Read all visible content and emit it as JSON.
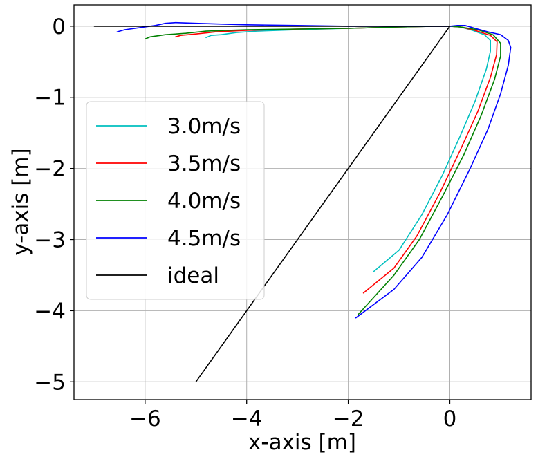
{
  "chart_data": {
    "type": "line",
    "title": "",
    "xlabel": "x-axis [m]",
    "ylabel": "y-axis [m]",
    "xlim": [
      -7.4,
      1.6
    ],
    "ylim": [
      -5.25,
      0.3
    ],
    "xticks": [
      -6,
      -4,
      -2,
      0
    ],
    "xtick_labels": [
      "−6",
      "−4",
      "−2",
      "0"
    ],
    "yticks": [
      0,
      -1,
      -2,
      -3,
      -4,
      -5
    ],
    "ytick_labels": [
      "0",
      "−1",
      "−2",
      "−3",
      "−4",
      "−5"
    ],
    "grid": true,
    "legend": {
      "position": "center-left"
    },
    "series": [
      {
        "name": "3.0m/s",
        "color": "#00bfbf",
        "points": [
          [
            -4.8,
            -0.16
          ],
          [
            -4.7,
            -0.13
          ],
          [
            -4.5,
            -0.12
          ],
          [
            -4.2,
            -0.09
          ],
          [
            -3.8,
            -0.07
          ],
          [
            -3.0,
            -0.05
          ],
          [
            -2.0,
            -0.03
          ],
          [
            -1.0,
            -0.01
          ],
          [
            -0.3,
            0.0
          ],
          [
            0.0,
            0.0
          ],
          [
            0.2,
            -0.01
          ],
          [
            0.45,
            -0.06
          ],
          [
            0.68,
            -0.12
          ],
          [
            0.8,
            -0.2
          ],
          [
            0.8,
            -0.35
          ],
          [
            0.72,
            -0.6
          ],
          [
            0.5,
            -1.05
          ],
          [
            0.2,
            -1.55
          ],
          [
            -0.15,
            -2.1
          ],
          [
            -0.55,
            -2.65
          ],
          [
            -1.0,
            -3.15
          ],
          [
            -1.5,
            -3.45
          ]
        ]
      },
      {
        "name": "3.5m/s",
        "color": "#ff0000",
        "points": [
          [
            -5.4,
            -0.15
          ],
          [
            -5.3,
            -0.13
          ],
          [
            -5.0,
            -0.11
          ],
          [
            -4.6,
            -0.08
          ],
          [
            -4.0,
            -0.06
          ],
          [
            -3.0,
            -0.04
          ],
          [
            -2.0,
            -0.03
          ],
          [
            -1.0,
            -0.01
          ],
          [
            -0.3,
            0.0
          ],
          [
            0.0,
            0.0
          ],
          [
            0.2,
            -0.01
          ],
          [
            0.5,
            -0.06
          ],
          [
            0.8,
            -0.13
          ],
          [
            0.93,
            -0.22
          ],
          [
            0.92,
            -0.4
          ],
          [
            0.8,
            -0.72
          ],
          [
            0.55,
            -1.2
          ],
          [
            0.2,
            -1.75
          ],
          [
            -0.2,
            -2.35
          ],
          [
            -0.65,
            -2.95
          ],
          [
            -1.1,
            -3.4
          ],
          [
            -1.7,
            -3.75
          ]
        ]
      },
      {
        "name": "4.0m/s",
        "color": "#008000",
        "points": [
          [
            -6.0,
            -0.18
          ],
          [
            -5.9,
            -0.15
          ],
          [
            -5.6,
            -0.12
          ],
          [
            -5.2,
            -0.1
          ],
          [
            -4.8,
            -0.07
          ],
          [
            -4.0,
            -0.05
          ],
          [
            -3.0,
            -0.04
          ],
          [
            -2.0,
            -0.03
          ],
          [
            -1.0,
            -0.01
          ],
          [
            -0.3,
            0.0
          ],
          [
            0.0,
            0.0
          ],
          [
            0.2,
            -0.01
          ],
          [
            0.55,
            -0.05
          ],
          [
            0.85,
            -0.12
          ],
          [
            1.0,
            -0.24
          ],
          [
            1.0,
            -0.42
          ],
          [
            0.88,
            -0.75
          ],
          [
            0.62,
            -1.25
          ],
          [
            0.28,
            -1.8
          ],
          [
            -0.15,
            -2.4
          ],
          [
            -0.6,
            -3.0
          ],
          [
            -1.1,
            -3.5
          ],
          [
            -1.8,
            -4.05
          ]
        ]
      },
      {
        "name": "4.5m/s",
        "color": "#0000ff",
        "points": [
          [
            -6.55,
            -0.08
          ],
          [
            -6.4,
            -0.05
          ],
          [
            -6.1,
            -0.02
          ],
          [
            -5.8,
            0.01
          ],
          [
            -5.6,
            0.04
          ],
          [
            -5.4,
            0.05
          ],
          [
            -5.0,
            0.04
          ],
          [
            -4.5,
            0.03
          ],
          [
            -4.0,
            0.02
          ],
          [
            -3.0,
            0.01
          ],
          [
            -2.0,
            0.0
          ],
          [
            -1.0,
            0.0
          ],
          [
            -0.3,
            0.0
          ],
          [
            0.0,
            0.0
          ],
          [
            0.15,
            0.01
          ],
          [
            0.3,
            0.01
          ],
          [
            0.5,
            -0.03
          ],
          [
            0.75,
            -0.08
          ],
          [
            1.0,
            -0.12
          ],
          [
            1.15,
            -0.2
          ],
          [
            1.2,
            -0.3
          ],
          [
            1.15,
            -0.55
          ],
          [
            1.0,
            -0.95
          ],
          [
            0.75,
            -1.45
          ],
          [
            0.4,
            -2.0
          ],
          [
            -0.05,
            -2.65
          ],
          [
            -0.55,
            -3.25
          ],
          [
            -1.1,
            -3.7
          ],
          [
            -1.85,
            -4.1
          ]
        ]
      },
      {
        "name": "ideal",
        "color": "#000000",
        "points": [
          [
            -7.0,
            0.0
          ],
          [
            0.0,
            0.0
          ],
          [
            -5.0,
            -5.0
          ]
        ]
      }
    ]
  }
}
